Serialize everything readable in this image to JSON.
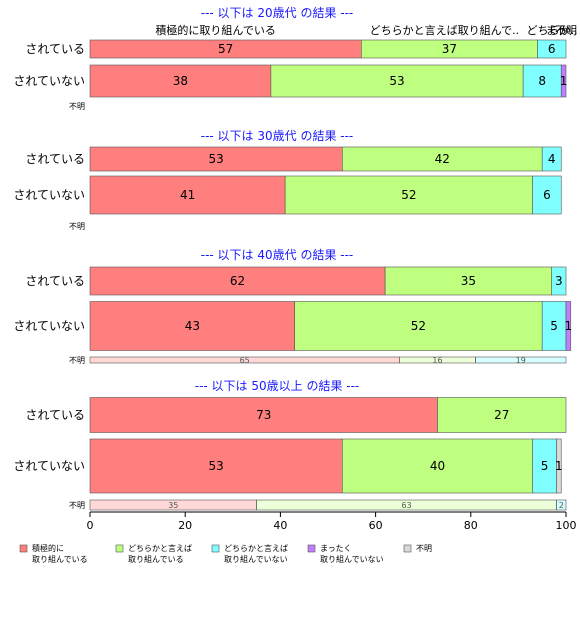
{
  "chart_data": {
    "type": "bar",
    "orientation": "horizontal-stacked",
    "colors": [
      "#ff7f7f",
      "#bfff7f",
      "#7fffff",
      "#bf7fff",
      "#d9d9d9"
    ],
    "categories": [
      "積極的に取り組んでいる",
      "どちらかと言えば取り組んでいる",
      "どちらかと言えば取り組んでいない",
      "まったく取り組んでいない",
      "不明"
    ],
    "header_labels": [
      "積極的に取り組んでいる",
      "どちらかと言えば取り組んで..",
      "どちらか..",
      "まっ..",
      "不明"
    ],
    "legend": [
      {
        "line1": "積極的に",
        "line2": "取り組んでいる"
      },
      {
        "line1": "どちらかと言えば",
        "line2": "取り組んでいる"
      },
      {
        "line1": "どちらかと言えば",
        "line2": "取り組んでいない"
      },
      {
        "line1": "まったく",
        "line2": "取り組んでいない"
      },
      {
        "line1": "不明",
        "line2": ""
      }
    ],
    "xlim": [
      0,
      100
    ],
    "xticks": [
      "0",
      "20",
      "40",
      "60",
      "80",
      "100"
    ],
    "panels": [
      {
        "title": "--- 以下は 20歳代 の結果 ---",
        "rows": [
          {
            "label": "されている",
            "values": [
              57,
              37,
              6,
              0,
              0
            ]
          },
          {
            "label": "されていない",
            "values": [
              38,
              53,
              8,
              1,
              0
            ]
          },
          {
            "label": "不明",
            "values": []
          }
        ]
      },
      {
        "title": "--- 以下は 30歳代 の結果 ---",
        "rows": [
          {
            "label": "されている",
            "values": [
              53,
              42,
              4,
              0,
              0
            ]
          },
          {
            "label": "されていない",
            "values": [
              41,
              52,
              6,
              0,
              0
            ]
          },
          {
            "label": "不明",
            "values": []
          }
        ]
      },
      {
        "title": "--- 以下は 40歳代 の結果 ---",
        "rows": [
          {
            "label": "されている",
            "values": [
              62,
              35,
              3,
              0,
              0
            ]
          },
          {
            "label": "されていない",
            "values": [
              43,
              52,
              5,
              1,
              0
            ]
          },
          {
            "label": "不明",
            "values": [
              65,
              16,
              19,
              0,
              0
            ]
          }
        ]
      },
      {
        "title": "--- 以下は 50歳以上 の結果 ---",
        "rows": [
          {
            "label": "されている",
            "values": [
              73,
              27,
              0,
              0,
              0
            ]
          },
          {
            "label": "されていない",
            "values": [
              53,
              40,
              5,
              0,
              1
            ]
          },
          {
            "label": "不明",
            "values": [
              35,
              63,
              2,
              0,
              0
            ]
          }
        ]
      }
    ]
  }
}
